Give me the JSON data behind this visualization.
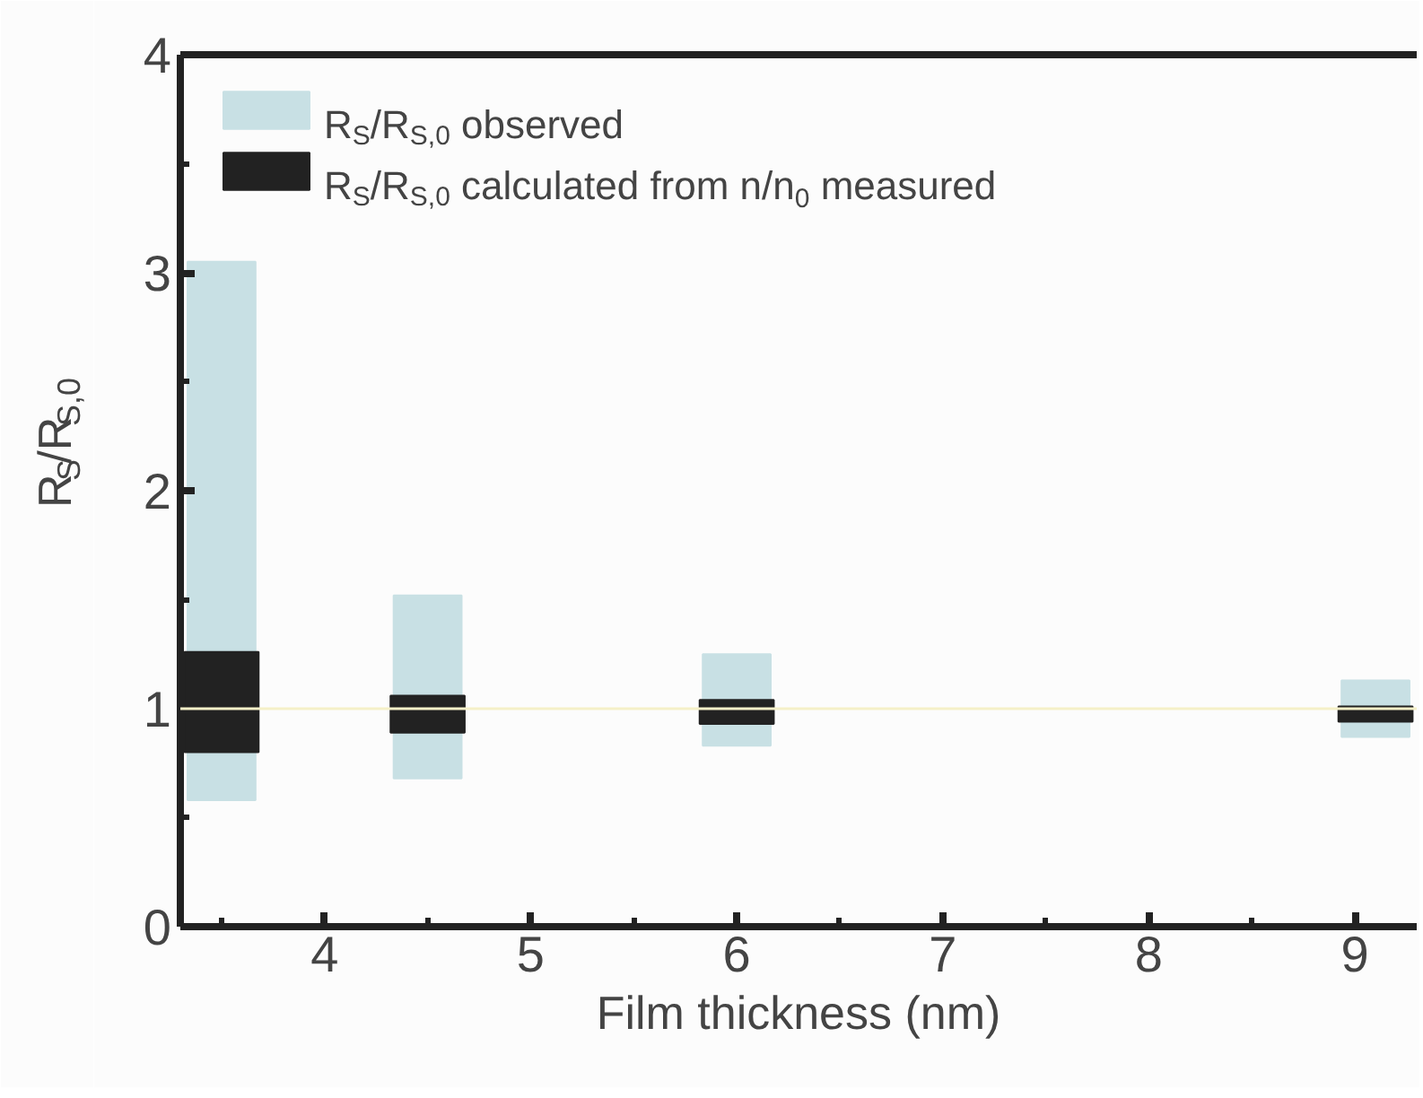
{
  "chart_data": {
    "type": "bar",
    "xlabel": "Film thickness (nm)",
    "ylabel": "R$_{S}$/R$_{S,0}$",
    "x": [
      3.5,
      4.5,
      6,
      9.1
    ],
    "series": [
      {
        "name": "R$_{S}$/R$_{S,0}$ observed",
        "color": "#c8e0e4",
        "base": [
          0.58,
          0.68,
          0.83,
          0.87
        ],
        "values": [
          2.47,
          0.84,
          0.42,
          0.26
        ]
      },
      {
        "name": "R$_{S}$/R$_{S,0}$ calculated from n/n$_{0}$ measured",
        "color": "#222222",
        "base": [
          0.8,
          0.89,
          0.93,
          0.94
        ],
        "values": [
          0.46,
          0.17,
          0.11,
          0.07
        ]
      }
    ],
    "xlim": [
      3.3,
      9.3
    ],
    "ylim": [
      0,
      4
    ],
    "xticks": [
      {
        "value": 3.5,
        "label": null
      },
      4,
      {
        "value": 4.5,
        "label": null
      },
      5,
      {
        "value": 5.5,
        "label": null
      },
      6,
      {
        "value": 6.5,
        "label": null
      },
      7,
      {
        "value": 7.5,
        "label": null
      },
      8,
      {
        "value": 8.5,
        "label": null
      },
      9
    ],
    "yticks": [
      0,
      {
        "value": 0.5,
        "label": null
      },
      1,
      {
        "value": 1.5,
        "label": null
      },
      2,
      {
        "value": 2.5,
        "label": null
      },
      3,
      {
        "value": 3.5,
        "label": null
      },
      4
    ],
    "ref_lines": [
      {
        "axis": "y",
        "value": 1,
        "color": "#f5f0c8"
      }
    ],
    "grid": false,
    "legend": "top left"
  }
}
